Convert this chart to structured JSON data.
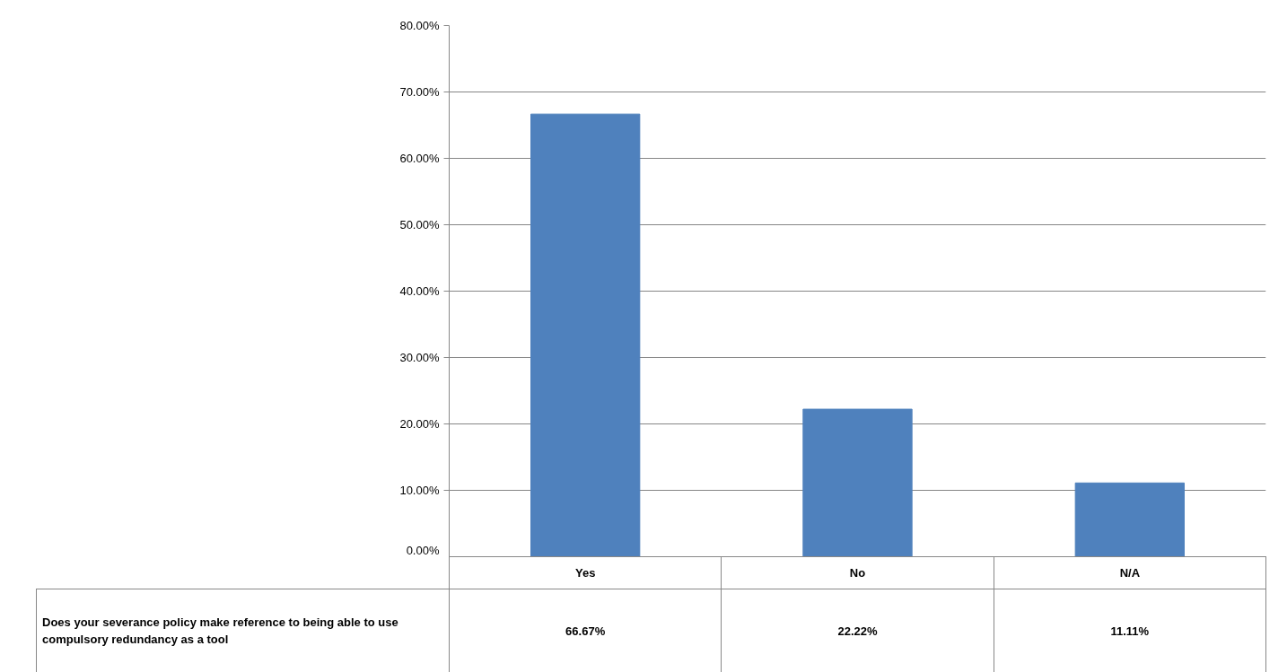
{
  "chart_data": {
    "type": "bar",
    "categories": [
      "Yes",
      "No",
      "N/A"
    ],
    "values": [
      66.67,
      22.22,
      11.11
    ],
    "value_labels": [
      "66.67%",
      "22.22%",
      "11.11%"
    ],
    "color": "#4f81bd",
    "ylim": [
      0,
      80
    ],
    "yticks": [
      {
        "value": 0,
        "label": "0.00%"
      },
      {
        "value": 10,
        "label": "10.00%"
      },
      {
        "value": 20,
        "label": "20.00%"
      },
      {
        "value": 30,
        "label": "30.00%"
      },
      {
        "value": 40,
        "label": "40.00%"
      },
      {
        "value": 50,
        "label": "50.00%"
      },
      {
        "value": 60,
        "label": "60.00%"
      },
      {
        "value": 70,
        "label": "70.00%"
      },
      {
        "value": 80,
        "label": "80.00%"
      }
    ],
    "grid": "y",
    "tick_labels": "y",
    "annotations": [
      "Does your severance policy make reference to being able to use compulsory redundancy as a tool"
    ]
  }
}
